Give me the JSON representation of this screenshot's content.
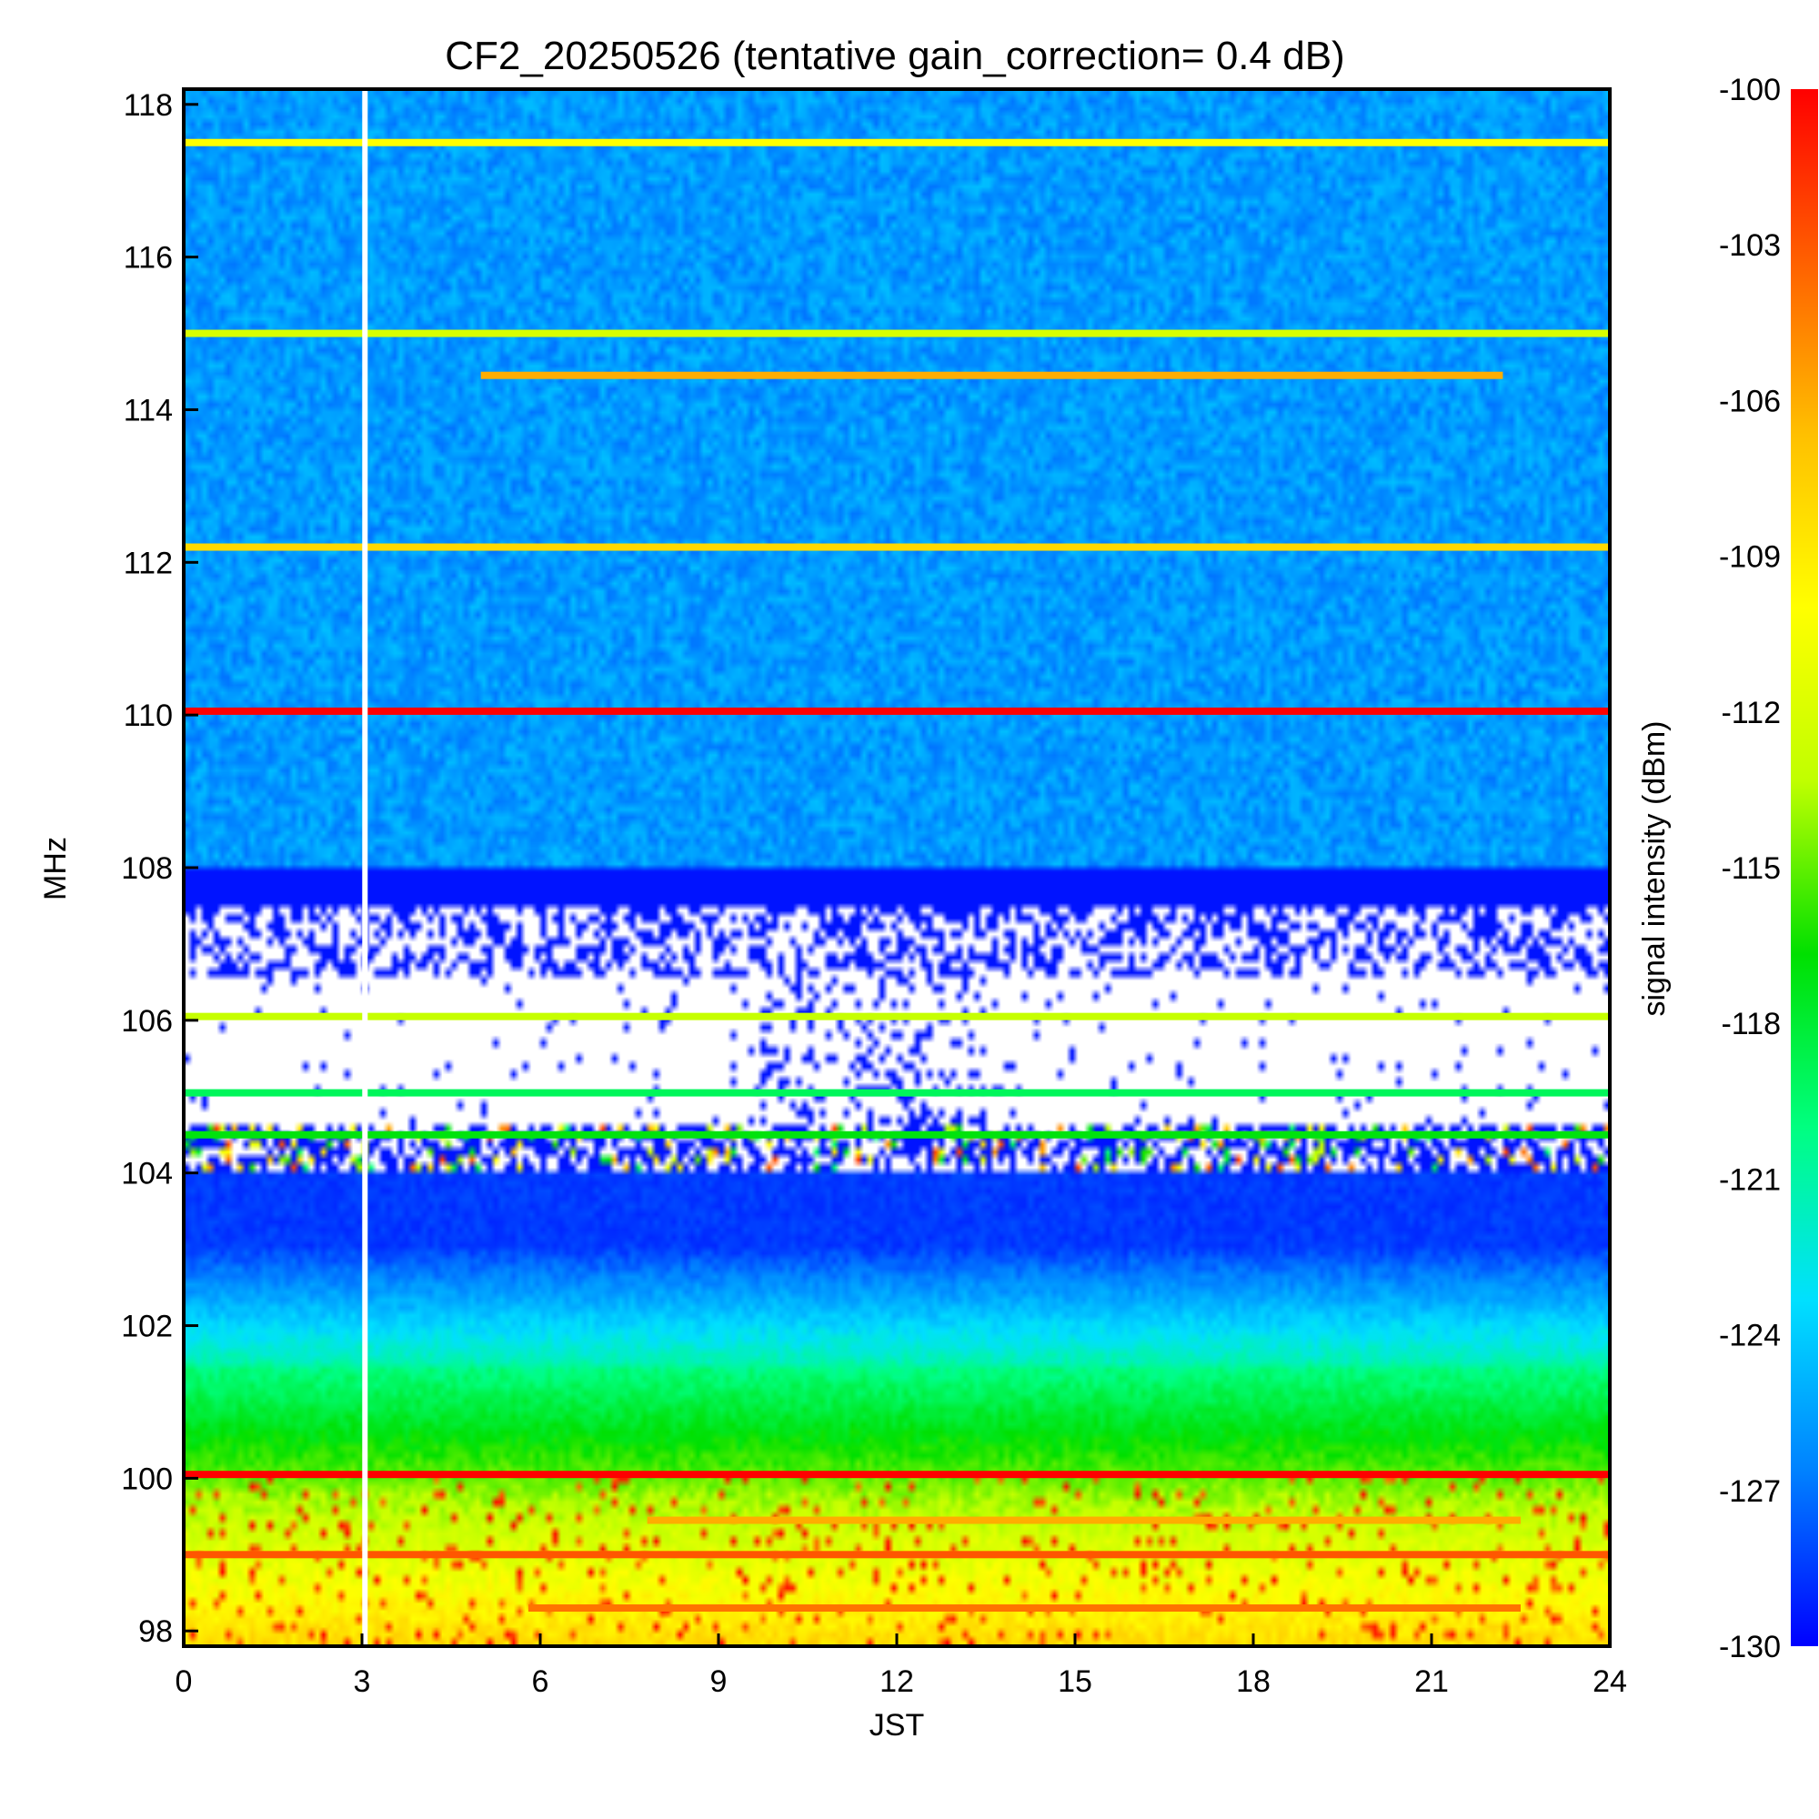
{
  "chart_data": {
    "type": "heatmap",
    "title": "CF2_20250526 (tentative gain_correction=  0.4 dB)",
    "xlabel": "JST",
    "ylabel": "MHz",
    "colorbar_label": "signal intensity (dBm)",
    "x_ticks": [
      "0",
      "3",
      "6",
      "9",
      "12",
      "15",
      "18",
      "21",
      "24"
    ],
    "y_ticks": [
      "98",
      "100",
      "102",
      "104",
      "106",
      "108",
      "110",
      "112",
      "114",
      "116",
      "118"
    ],
    "colorbar_ticks": [
      "-100",
      "-103",
      "-106",
      "-109",
      "-112",
      "-115",
      "-118",
      "-121",
      "-124",
      "-127",
      "-130"
    ],
    "xlim": [
      0,
      24
    ],
    "ylim": [
      97.8,
      118.2
    ],
    "clim": [
      -130,
      -100
    ],
    "colormap": [
      "#0000ff",
      "#0080ff",
      "#00e0ff",
      "#00ff80",
      "#00e000",
      "#c0ff00",
      "#ffff00",
      "#ffc000",
      "#ff6000",
      "#ff0000"
    ],
    "strong_carriers_MHz": [
      {
        "freq": 117.5,
        "dBm": -110,
        "start": 0,
        "end": 24
      },
      {
        "freq": 115.0,
        "dBm": -112,
        "start": 0,
        "end": 24
      },
      {
        "freq": 114.45,
        "dBm": -106,
        "start": 5,
        "end": 22.2
      },
      {
        "freq": 112.2,
        "dBm": -108,
        "start": 0,
        "end": 24
      },
      {
        "freq": 110.05,
        "dBm": -100,
        "start": 0,
        "end": 24
      },
      {
        "freq": 105.05,
        "dBm": -119,
        "start": 0,
        "end": 24
      },
      {
        "freq": 106.05,
        "dBm": -113,
        "start": 0,
        "end": 24
      },
      {
        "freq": 104.5,
        "dBm": -117,
        "start": 0,
        "end": 24
      },
      {
        "freq": 100.05,
        "dBm": -100,
        "start": 0,
        "end": 24
      },
      {
        "freq": 99.45,
        "dBm": -106,
        "start": 7.8,
        "end": 22.5
      },
      {
        "freq": 99.0,
        "dBm": -103,
        "start": 0,
        "end": 24
      },
      {
        "freq": 98.3,
        "dBm": -104,
        "start": 5.8,
        "end": 22.5
      }
    ],
    "data_gap_JST": 3.05
  }
}
